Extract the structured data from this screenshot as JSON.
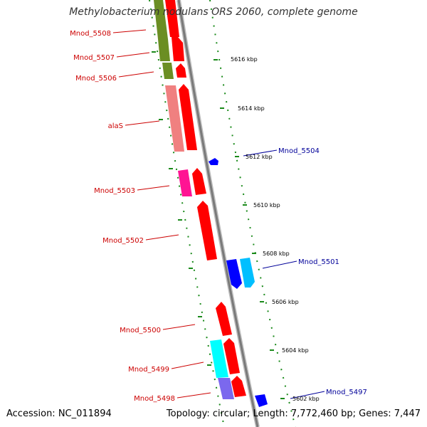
{
  "title": "Methylobacterium nodulans ORS 2060, complete genome",
  "footer": {
    "accession": "Accession: NC_011894",
    "summary": "Topology: circular; Length: 7,772,460 bp; Genes: 7,447"
  },
  "ticks": [
    "5616 kbp",
    "5614 kbp",
    "5612 kbp",
    "5610 kbp",
    "5608 kbp",
    "5606 kbp",
    "5604 kbp",
    "5602 kbp"
  ],
  "labels": [
    "Mnod_5508",
    "Mnod_5507",
    "Mnod_5506",
    "alaS",
    "Mnod_5504",
    "Mnod_5503",
    "Mnod_5502",
    "Mnod_5501",
    "Mnod_5500",
    "Mnod_5499",
    "Mnod_5498",
    "Mnod_5497"
  ],
  "colors": {
    "reverse_strand_label": "#cc0000",
    "forward_strand_label": "#000099",
    "backbone": "#8a8a8a",
    "tick_dots": "#1a8a1a",
    "gene_red": "#ff0000",
    "gene_green": "#6b8e23",
    "gene_pink": "#f08080",
    "gene_magenta": "#ff1493",
    "gene_blue": "#0000ff",
    "gene_cyan": "#00bfff",
    "gene_aqua": "#00ffff",
    "gene_slate": "#7b68ee"
  }
}
